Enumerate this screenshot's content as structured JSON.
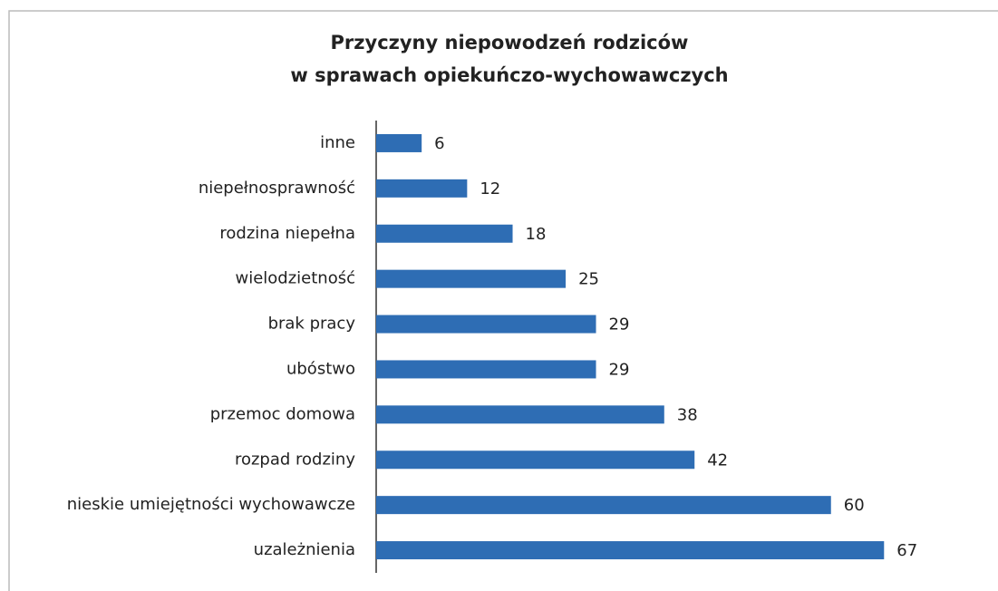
{
  "chart_data": {
    "type": "barh",
    "title": [
      "Przyczyny niepowodzeń rodziców",
      "w sprawach opiekuńczo-wychowawczych"
    ],
    "categories": [
      "inne",
      "niepełnosprawność",
      "rodzina niepełna",
      "wielodzietność",
      "brak pracy",
      "ubóstwo",
      "przemoc domowa",
      "rozpad rodziny",
      "nieskie umiejętności wychowawcze",
      "uzależnienia"
    ],
    "values": [
      6,
      12,
      18,
      25,
      29,
      29,
      38,
      42,
      60,
      67
    ],
    "color": "#2e6db4",
    "xlim": [
      0,
      80
    ]
  }
}
